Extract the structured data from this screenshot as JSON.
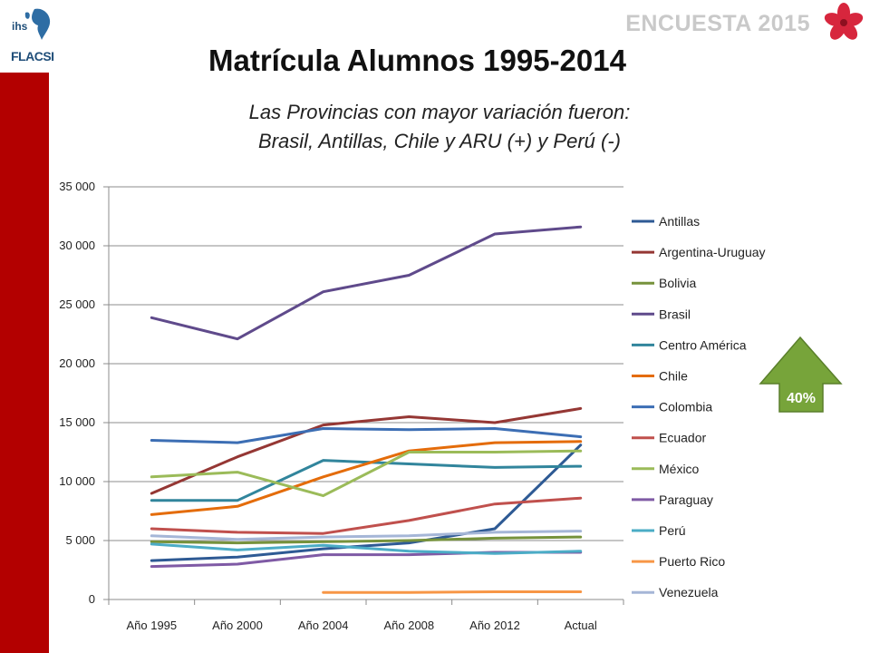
{
  "header": {
    "logo_top": "ihs",
    "logo_bottom": "FLACSI",
    "survey_label": "ENCUESTA 2015"
  },
  "title": "Matrícula Alumnos 1995-2014",
  "subtitle_line1": "Las Provincias con mayor variación fueron:",
  "subtitle_line2": "Brasil, Antillas, Chile y ARU (+) y Perú (-)",
  "callout": {
    "label": "40%",
    "arrow_color": "#77a43a"
  },
  "chart_data": {
    "type": "line",
    "categories": [
      "Año 1995",
      "Año 2000",
      "Año 2004",
      "Año 2008",
      "Año 2012",
      "Actual"
    ],
    "ylim": [
      0,
      35000
    ],
    "yticks": [
      0,
      5000,
      10000,
      15000,
      20000,
      25000,
      30000,
      35000
    ],
    "ytick_labels": [
      "0",
      "5 000",
      "10 000",
      "15 000",
      "20 000",
      "25 000",
      "30 000",
      "35 000"
    ],
    "grid": true,
    "legend_position": "right",
    "series": [
      {
        "name": "Antillas",
        "color": "#2e5a94",
        "values": [
          3300,
          3600,
          4300,
          4800,
          6000,
          13100
        ]
      },
      {
        "name": "Argentina-Uruguay",
        "color": "#953734",
        "values": [
          9000,
          12100,
          14800,
          15500,
          15000,
          16200
        ]
      },
      {
        "name": "Bolivia",
        "color": "#76923c",
        "values": [
          4900,
          4800,
          4900,
          5000,
          5200,
          5300
        ]
      },
      {
        "name": "Brasil",
        "color": "#5f4a8b",
        "values": [
          23900,
          22100,
          26100,
          27500,
          31000,
          31600
        ]
      },
      {
        "name": "Centro América",
        "color": "#31859c",
        "values": [
          8400,
          8400,
          11800,
          11500,
          11200,
          11300
        ]
      },
      {
        "name": "Chile",
        "color": "#e46c0a",
        "values": [
          7200,
          7900,
          10400,
          12600,
          13300,
          13400
        ]
      },
      {
        "name": "Colombia",
        "color": "#3c6eb4",
        "values": [
          13500,
          13300,
          14500,
          14400,
          14500,
          13800
        ]
      },
      {
        "name": "Ecuador",
        "color": "#c0504d",
        "values": [
          6000,
          5700,
          5600,
          6700,
          8100,
          8600
        ]
      },
      {
        "name": "México",
        "color": "#9bbb59",
        "values": [
          10400,
          10800,
          8800,
          12500,
          12500,
          12600
        ]
      },
      {
        "name": "Paraguay",
        "color": "#7f5aa5",
        "values": [
          2800,
          3000,
          3800,
          3800,
          4000,
          4000
        ]
      },
      {
        "name": "Perú",
        "color": "#4bacc6",
        "values": [
          4700,
          4200,
          4600,
          4100,
          3900,
          4100
        ]
      },
      {
        "name": "Puerto Rico",
        "color": "#f79646",
        "values": [
          null,
          null,
          600,
          600,
          650,
          650
        ]
      },
      {
        "name": "Venezuela",
        "color": "#a5b6d7",
        "values": [
          5400,
          5100,
          5300,
          5400,
          5700,
          5800
        ]
      }
    ]
  }
}
